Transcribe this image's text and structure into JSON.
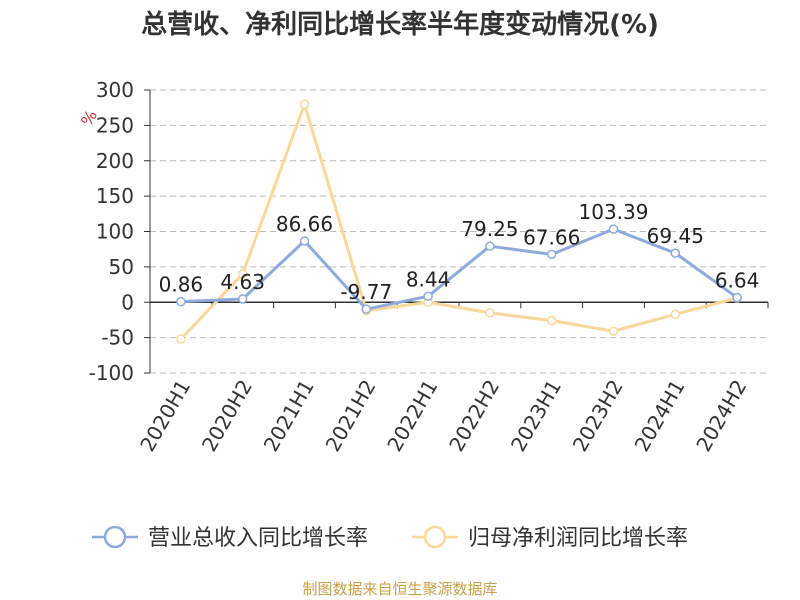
{
  "chart_data": {
    "type": "line",
    "title": "总营收、净利同比增长率半年度变动情况(%)",
    "ylabel": "%",
    "categories": [
      "2020H1",
      "2020H2",
      "2021H1",
      "2021H2",
      "2022H1",
      "2022H2",
      "2023H1",
      "2023H2",
      "2024H1",
      "2024H2"
    ],
    "ylim": [
      -100,
      300
    ],
    "yticks": [
      300,
      250,
      200,
      150,
      100,
      50,
      0,
      -50,
      -100
    ],
    "grid": true,
    "legend_position": "bottom",
    "series": [
      {
        "name": "营业总收入同比增长率",
        "color": "#8eaadb",
        "values": [
          0.86,
          4.63,
          86.66,
          -9.77,
          8.44,
          79.25,
          67.66,
          103.39,
          69.45,
          6.64
        ],
        "data_labels": [
          "0.86",
          "4.63",
          "86.66",
          "-9.77",
          "8.44",
          "79.25",
          "67.66",
          "103.39",
          "69.45",
          "6.64"
        ]
      },
      {
        "name": "归母净利润同比增长率",
        "color": "#fad89b",
        "values": [
          -52,
          40,
          280,
          -12,
          0,
          -15,
          -26,
          -41,
          -17,
          6
        ]
      }
    ]
  },
  "source_note": "制图数据来自恒生聚源数据库"
}
